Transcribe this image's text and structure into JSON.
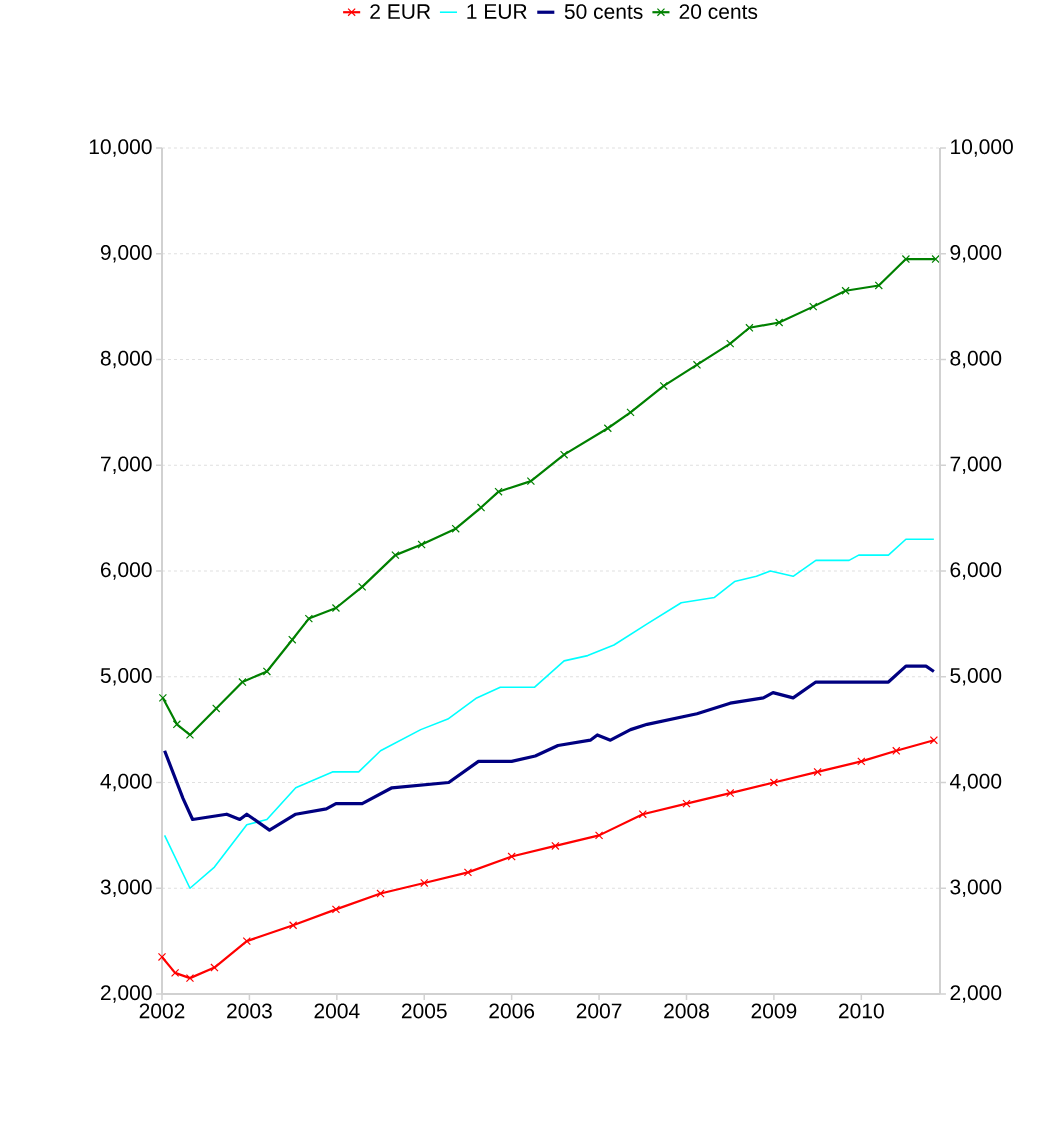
{
  "chart_data": {
    "type": "line",
    "series": [
      {
        "name": "2 EUR",
        "color": "#ff0000",
        "marker": "cross",
        "x": [
          2002.0,
          2002.15,
          2002.32,
          2002.6,
          2002.97,
          2003.5,
          2003.99,
          2004.5,
          2005.0,
          2005.5,
          2006.0,
          2006.5,
          2007.0,
          2007.5,
          2008.0,
          2008.5,
          2009.0,
          2009.5,
          2010.0,
          2010.4,
          2010.83
        ],
        "values": [
          2350,
          2200,
          2150,
          2250,
          2500,
          2650,
          2800,
          2950,
          3050,
          3150,
          3300,
          3400,
          3500,
          3700,
          3800,
          3900,
          4000,
          4100,
          4200,
          4300,
          4400
        ]
      },
      {
        "name": "1 EUR",
        "color": "#00ffff",
        "marker": "none",
        "x": [
          2002.03,
          2002.32,
          2002.6,
          2002.97,
          2003.2,
          2003.53,
          2003.95,
          2004.25,
          2004.5,
          2004.96,
          2005.27,
          2005.6,
          2005.87,
          2006.26,
          2006.6,
          2006.87,
          2007.17,
          2007.55,
          2007.94,
          2008.32,
          2008.55,
          2008.8,
          2008.96,
          2009.22,
          2009.48,
          2009.71,
          2009.86,
          2009.97,
          2010.31,
          2010.51,
          2010.83
        ],
        "values": [
          3500,
          3000,
          3200,
          3600,
          3650,
          3950,
          4100,
          4100,
          4300,
          4500,
          4600,
          4800,
          4900,
          4900,
          5150,
          5200,
          5300,
          5500,
          5700,
          5750,
          5900,
          5950,
          6000,
          5950,
          6100,
          6100,
          6100,
          6150,
          6150,
          6300,
          6300
        ]
      },
      {
        "name": "50 cents",
        "color": "#000080",
        "marker": "none",
        "x": [
          2002.03,
          2002.24,
          2002.35,
          2002.74,
          2002.89,
          2002.97,
          2003.23,
          2003.53,
          2003.88,
          2003.99,
          2004.29,
          2004.63,
          2005.28,
          2005.62,
          2006.0,
          2006.27,
          2006.53,
          2006.9,
          2006.98,
          2007.13,
          2007.36,
          2007.55,
          2008.12,
          2008.5,
          2008.88,
          2008.99,
          2009.22,
          2009.48,
          2009.94,
          2010.13,
          2010.31,
          2010.51,
          2010.74,
          2010.83
        ],
        "values": [
          4300,
          3850,
          3650,
          3700,
          3650,
          3700,
          3550,
          3700,
          3750,
          3800,
          3800,
          3950,
          4000,
          4200,
          4200,
          4250,
          4350,
          4400,
          4450,
          4400,
          4500,
          4550,
          4650,
          4750,
          4800,
          4850,
          4800,
          4950,
          4950,
          4950,
          4950,
          5100,
          5100,
          5050
        ]
      },
      {
        "name": "20 cents",
        "color": "#008000",
        "marker": "cross",
        "x": [
          2002.01,
          2002.17,
          2002.32,
          2002.62,
          2002.92,
          2003.2,
          2003.49,
          2003.68,
          2003.99,
          2004.29,
          2004.67,
          2004.97,
          2005.36,
          2005.65,
          2005.85,
          2006.22,
          2006.6,
          2007.1,
          2007.36,
          2007.74,
          2008.12,
          2008.5,
          2008.72,
          2009.06,
          2009.45,
          2009.82,
          2010.2,
          2010.51,
          2010.85
        ],
        "values": [
          4800,
          4550,
          4450,
          4700,
          4950,
          5050,
          5350,
          5550,
          5650,
          5850,
          6150,
          6250,
          6400,
          6600,
          6750,
          6850,
          7100,
          7350,
          7500,
          7750,
          7950,
          8150,
          8300,
          8350,
          8500,
          8650,
          8700,
          8950,
          8950
        ]
      }
    ],
    "xlim": [
      2002,
      2010.9
    ],
    "xticks": [
      2002,
      2003,
      2004,
      2005,
      2006,
      2007,
      2008,
      2009,
      2010
    ],
    "ylim": [
      2000,
      10000
    ],
    "yticks": [
      {
        "value": 2000,
        "label": "2,000"
      },
      {
        "value": 3000,
        "label": "3,000"
      },
      {
        "value": 4000,
        "label": "4,000"
      },
      {
        "value": 5000,
        "label": "5,000"
      },
      {
        "value": 6000,
        "label": "6,000"
      },
      {
        "value": 7000,
        "label": "7,000"
      },
      {
        "value": 8000,
        "label": "8,000"
      },
      {
        "value": 9000,
        "label": "9,000"
      },
      {
        "value": 10000,
        "label": "10,000"
      }
    ],
    "y2lim": [
      2000,
      10000
    ],
    "y2ticks": [
      {
        "value": 2000,
        "label": "2,000"
      },
      {
        "value": 3000,
        "label": "3,000"
      },
      {
        "value": 4000,
        "label": "4,000"
      },
      {
        "value": 5000,
        "label": "5,000"
      },
      {
        "value": 6000,
        "label": "6,000"
      },
      {
        "value": 7000,
        "label": "7,000"
      },
      {
        "value": 8000,
        "label": "8,000"
      },
      {
        "value": 9000,
        "label": "9,000"
      },
      {
        "value": 10000,
        "label": "10,000"
      }
    ],
    "grid": "y",
    "legend": "top"
  }
}
